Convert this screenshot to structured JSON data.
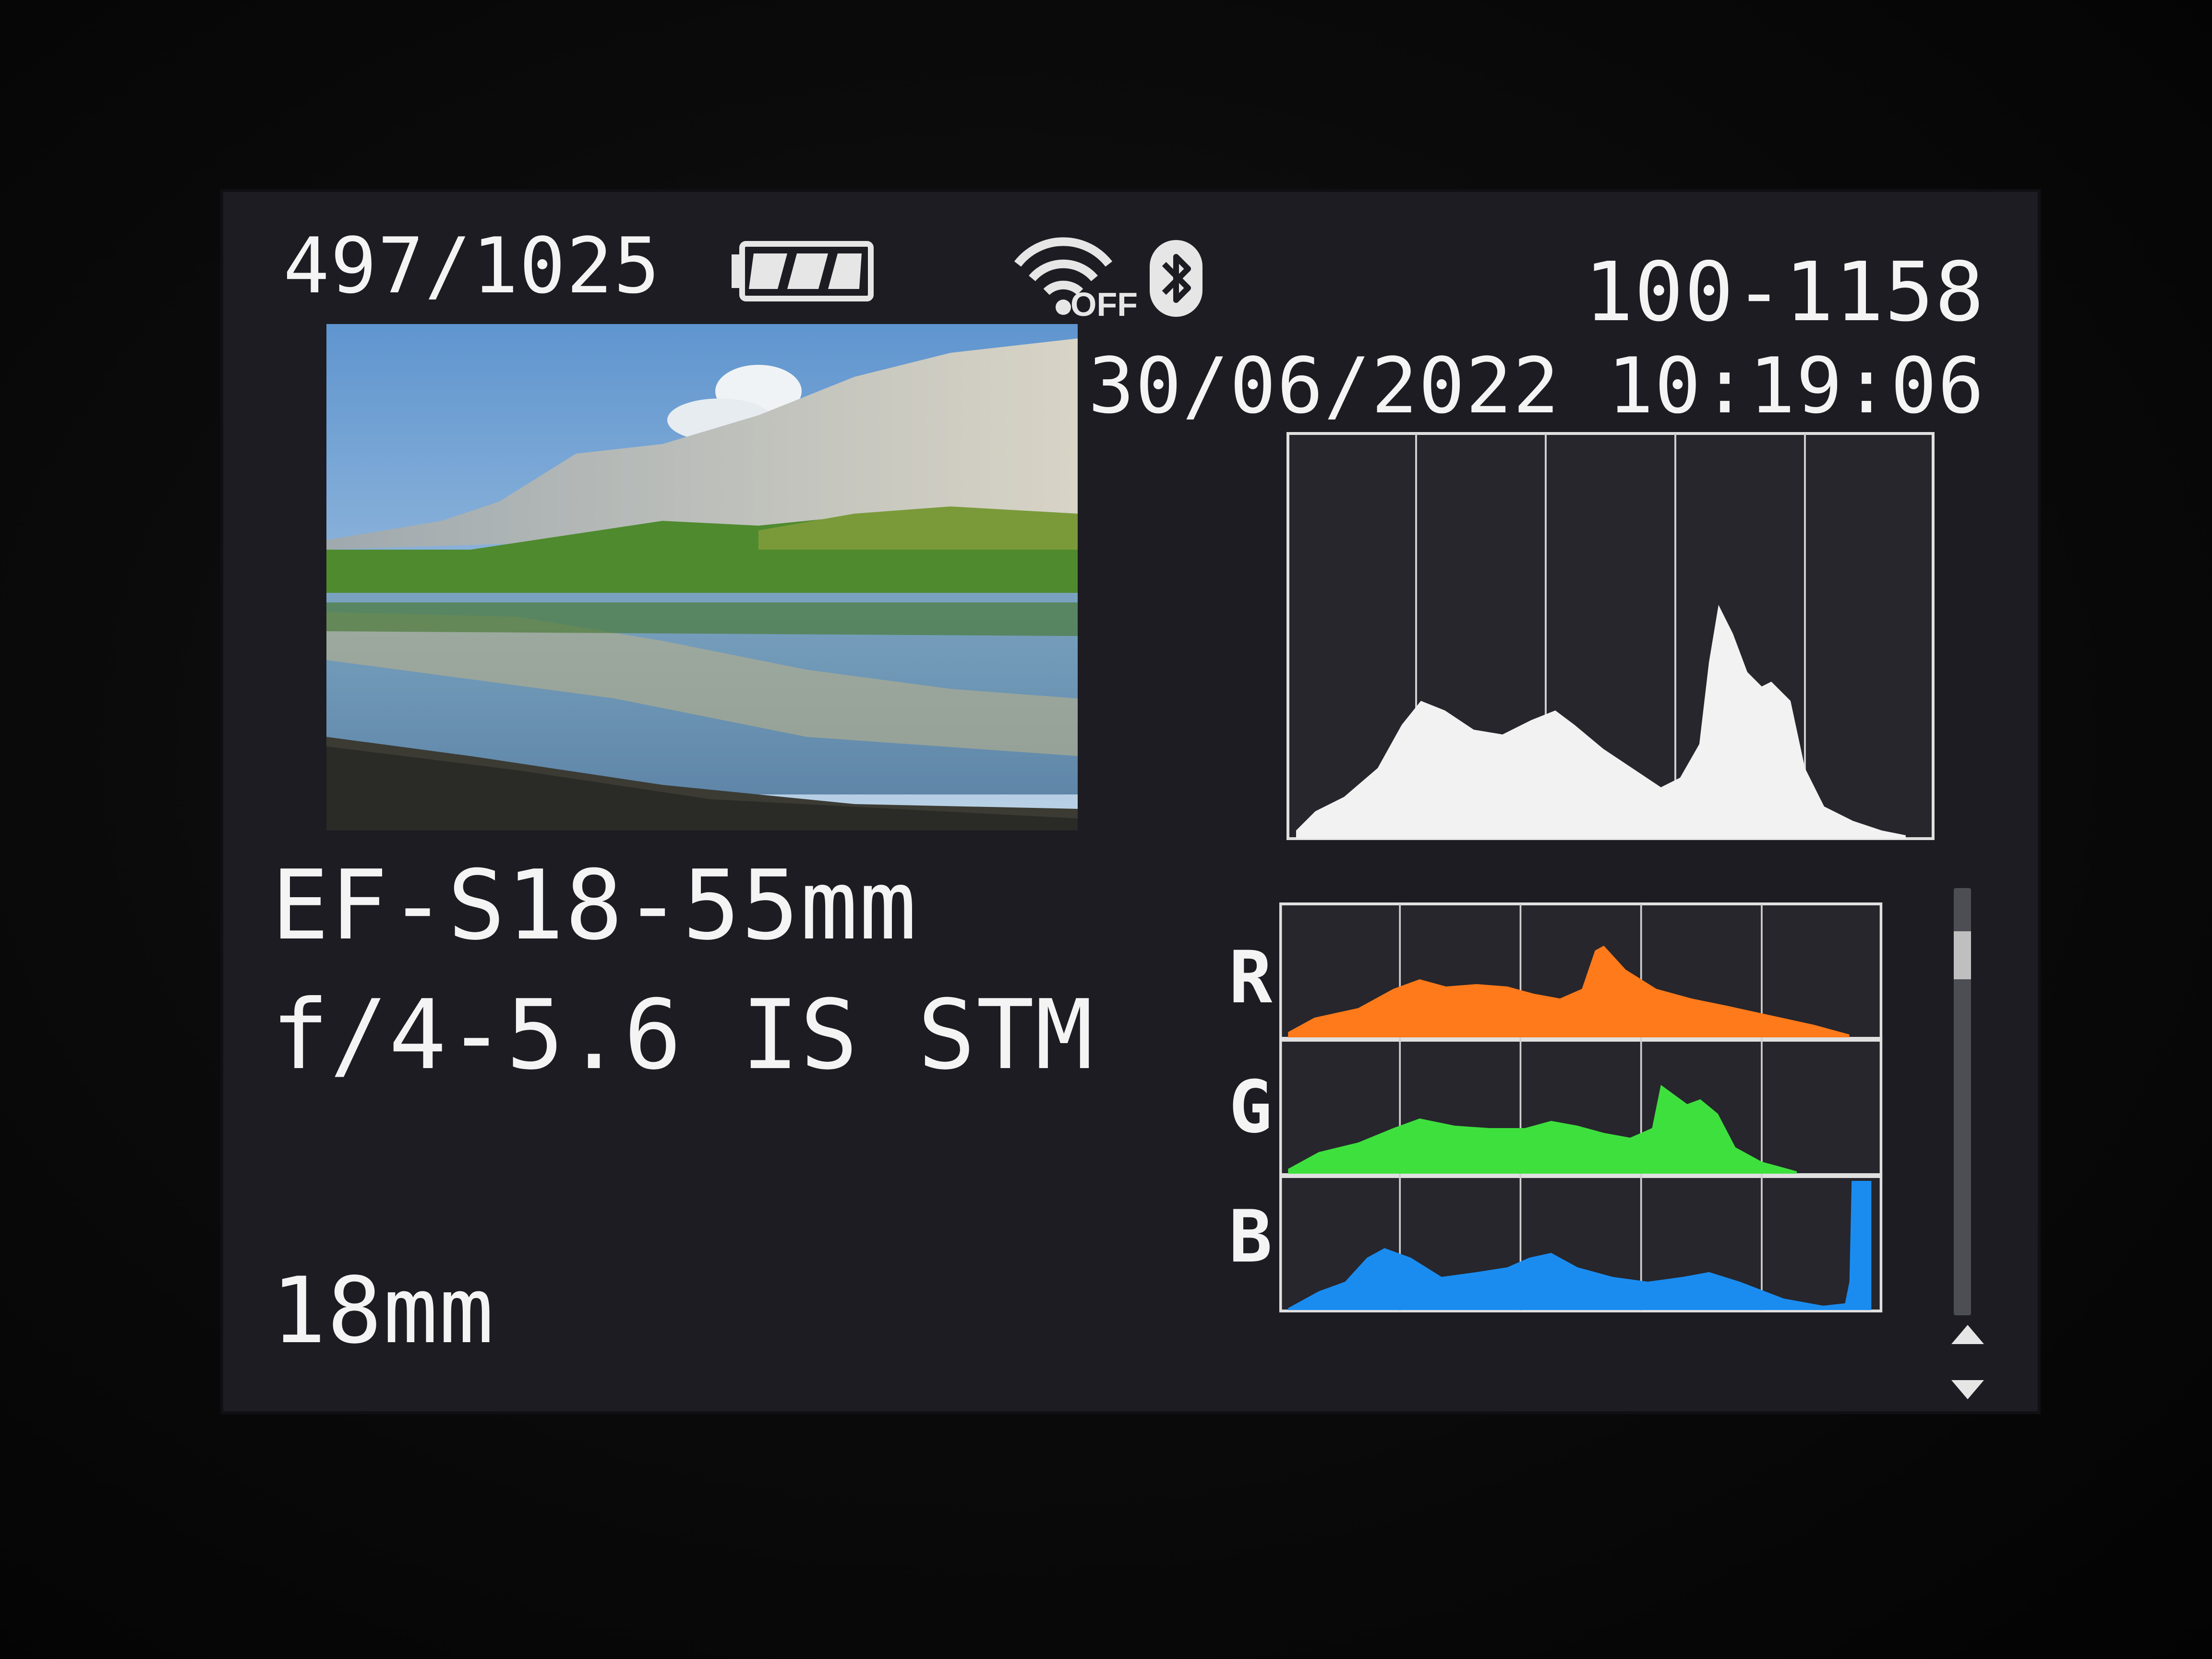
{
  "status_bar": {
    "image_counter": "497/1025",
    "battery_icon": "battery-icon",
    "wifi_icon": "wifi-off-icon",
    "wifi_status": "OFF",
    "bluetooth_icon": "bluetooth-icon"
  },
  "file_info": {
    "file_number": "100-1158",
    "date_time": "30/06/2022 10:19:06"
  },
  "lens_info": {
    "lens_line1": "EF-S18-55mm",
    "lens_line2": "f/4-5.6 IS STM",
    "focal_length": "18mm"
  },
  "histograms": {
    "brightness_color": "#f2f2f2",
    "channels": [
      {
        "label": "R",
        "color": "#ff7a1a"
      },
      {
        "label": "G",
        "color": "#3ee03e"
      },
      {
        "label": "B",
        "color": "#1a8cf0"
      }
    ]
  },
  "navigation": {
    "scroll_up_icon": "arrow-up-icon",
    "scroll_down_icon": "arrow-down-icon"
  }
}
